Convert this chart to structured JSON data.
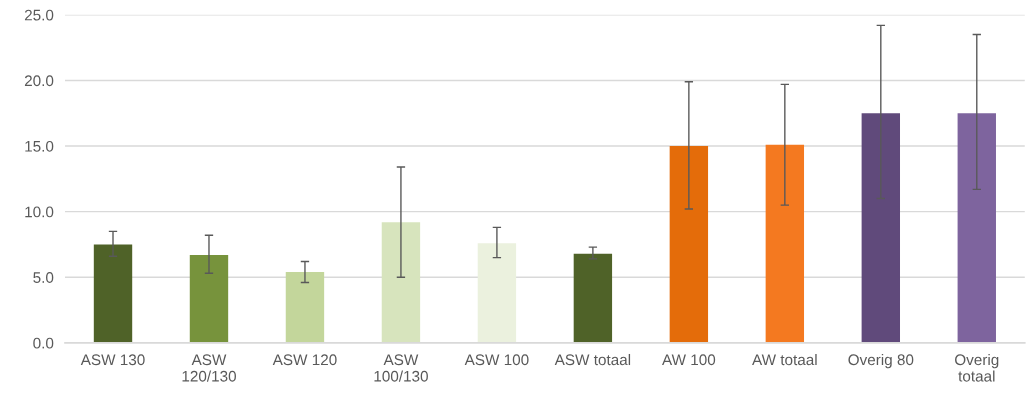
{
  "chart_data": {
    "type": "bar",
    "categories": [
      "ASW 130",
      "ASW 120/130",
      "ASW 120",
      "ASW 100/130",
      "ASW 100",
      "ASW totaal",
      "AW 100",
      "AW totaal",
      "Overig 80",
      "Overig totaal"
    ],
    "values": [
      7.5,
      6.7,
      5.4,
      9.2,
      7.6,
      6.8,
      15.0,
      15.1,
      17.5,
      17.5
    ],
    "colors": [
      "#4f6228",
      "#77933c",
      "#c3d69b",
      "#d7e4bd",
      "#ebf1de",
      "#4f6228",
      "#e46c0a",
      "#f47920",
      "#604a7b",
      "#7e649e"
    ],
    "errors": [
      [
        6.6,
        8.5
      ],
      [
        5.3,
        8.2
      ],
      [
        4.6,
        6.2
      ],
      [
        5.0,
        13.4
      ],
      [
        6.5,
        8.8
      ],
      [
        6.4,
        7.3
      ],
      [
        10.2,
        19.9
      ],
      [
        10.5,
        19.7
      ],
      [
        11.0,
        24.2
      ],
      [
        11.7,
        23.5
      ]
    ],
    "ylim": [
      0,
      25
    ],
    "yticks": [
      {
        "value": 0,
        "label": "0.0"
      },
      {
        "value": 5,
        "label": "5.0"
      },
      {
        "value": 10,
        "label": "10.0"
      },
      {
        "value": 15,
        "label": "15.0"
      },
      {
        "value": 20,
        "label": "20.0"
      },
      {
        "value": 25,
        "label": "25.0"
      }
    ],
    "grid": "y"
  }
}
